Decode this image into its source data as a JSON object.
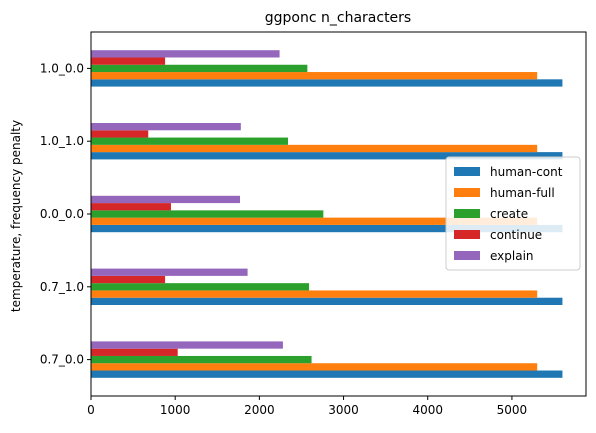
{
  "chart_data": {
    "type": "bar",
    "orientation": "horizontal",
    "title": "ggponc n_characters",
    "xlabel": "",
    "ylabel": "temperature, frequency penalty",
    "categories": [
      "0.7_0.0",
      "0.7_1.0",
      "0.0_0.0",
      "1.0_1.0",
      "1.0_0.0"
    ],
    "xlim": [
      0,
      5880
    ],
    "xticks": [
      0,
      1000,
      2000,
      3000,
      4000,
      5000
    ],
    "grid": false,
    "legend_position": "center-right",
    "series": [
      {
        "name": "human-cont",
        "color": "#1f77b4",
        "values": [
          5600,
          5600,
          5600,
          5600,
          5600
        ]
      },
      {
        "name": "human-full",
        "color": "#ff7f0e",
        "values": [
          5300,
          5300,
          5300,
          5300,
          5300
        ]
      },
      {
        "name": "create",
        "color": "#2ca02c",
        "values": [
          2620,
          2590,
          2760,
          2340,
          2570
        ]
      },
      {
        "name": "continue",
        "color": "#d62728",
        "values": [
          1030,
          880,
          950,
          680,
          880
        ]
      },
      {
        "name": "explain",
        "color": "#9467bd",
        "values": [
          2280,
          1860,
          1770,
          1780,
          2240
        ]
      }
    ]
  }
}
